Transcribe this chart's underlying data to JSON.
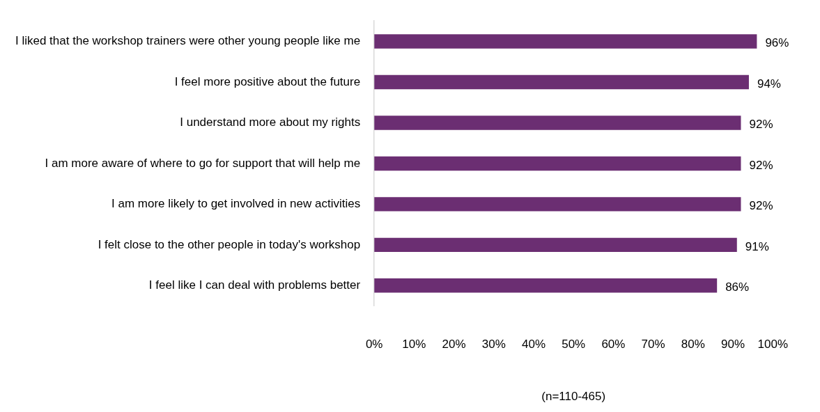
{
  "chart_data": {
    "type": "bar",
    "orientation": "horizontal",
    "categories": [
      "I liked that the workshop trainers were other young people like me",
      "I feel more positive about the future",
      "I understand more about my rights",
      "I am more aware of where to go for support that will help me",
      "I am more likely to get involved in new activities",
      "I felt close to the other people in today's workshop",
      "I feel like I can deal with problems better"
    ],
    "values": [
      96,
      94,
      92,
      92,
      92,
      91,
      86
    ],
    "value_labels": [
      "96%",
      "94%",
      "92%",
      "92%",
      "92%",
      "91%",
      "86%"
    ],
    "color": "#6b2e72",
    "xlim": [
      0,
      100
    ],
    "xticks": [
      {
        "value": 0,
        "label": "0%"
      },
      {
        "value": 10,
        "label": "10%"
      },
      {
        "value": 20,
        "label": "20%"
      },
      {
        "value": 30,
        "label": "30%"
      },
      {
        "value": 40,
        "label": "40%"
      },
      {
        "value": 50,
        "label": "50%"
      },
      {
        "value": 60,
        "label": "60%"
      },
      {
        "value": 70,
        "label": "70%"
      },
      {
        "value": 80,
        "label": "80%"
      },
      {
        "value": 90,
        "label": "90%"
      },
      {
        "value": 100,
        "label": "100%"
      }
    ],
    "grid": false,
    "legend": false,
    "annotations": [
      "(n=110-465)"
    ]
  }
}
